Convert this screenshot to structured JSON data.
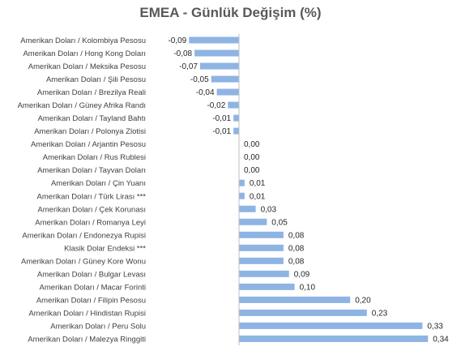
{
  "chart_data": {
    "type": "bar",
    "orientation": "horizontal",
    "title": "EMEA - Günlük Değişim (%)",
    "bar_color": "#8EB4E3",
    "axis_color": "#BFBFBF",
    "xlabel": "",
    "ylabel": "",
    "grid": false,
    "legend": "none",
    "categories": [
      "Amerikan Doları / Kolombiya Pesosu",
      "Amerikan Doları / Hong Kong Doları",
      "Amerikan Doları / Meksika Pesosu",
      "Amerikan Doları / Şili Pesosu",
      "Amerikan Doları / Brezilya Reali",
      "Amerikan Doları / Güney Afrika Randı",
      "Amerikan Doları / Tayland Bahtı",
      "Amerikan Doları / Polonya Zlotisi",
      "Amerikan Doları / Arjantin Pesosu",
      "Amerikan Doları / Rus Rublesi",
      "Amerikan Doları / Tayvan Doları",
      "Amerikan Doları / Çin Yuanı",
      "Amerikan Doları / Türk Lirası ***",
      "Amerikan Doları / Çek Korunası",
      "Amerikan Doları / Romanya Leyi",
      "Amerikan Doları / Endonezya Rupisi",
      "Klasik Dolar Endeksi ***",
      "Amerikan Doları / Güney Kore Wonu",
      "Amerikan Doları / Bulgar Levası",
      "Amerikan Doları / Macar Forinti",
      "Amerikan Doları / Filipin Pesosu",
      "Amerikan Doları / Hindistan Rupisi",
      "Amerikan Doları / Peru Solu",
      "Amerikan Doları / Malezya Ringgiti"
    ],
    "values": [
      -0.09,
      -0.08,
      -0.07,
      -0.05,
      -0.04,
      -0.02,
      -0.01,
      -0.01,
      0.0,
      0.0,
      0.0,
      0.01,
      0.01,
      0.03,
      0.05,
      0.08,
      0.08,
      0.08,
      0.09,
      0.1,
      0.2,
      0.23,
      0.33,
      0.34
    ],
    "value_labels": [
      "-0,09",
      "-0,08",
      "-0,07",
      "-0,05",
      "-0,04",
      "-0,02",
      "-0,01",
      "-0,01",
      "0,00",
      "0,00",
      "0,00",
      "0,01",
      "0,01",
      "0,03",
      "0,05",
      "0,08",
      "0,08",
      "0,08",
      "0,09",
      "0,10",
      "0,20",
      "0,23",
      "0,33",
      "0,34"
    ],
    "xlim": [
      -0.09,
      0.34
    ]
  }
}
